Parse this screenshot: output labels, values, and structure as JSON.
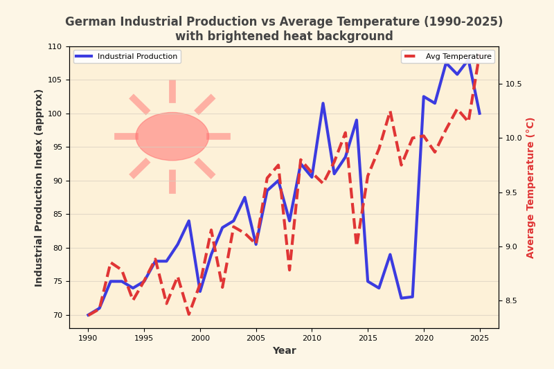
{
  "chart_data": {
    "type": "line",
    "title": "German Industrial Production vs Average Temperature (1990-2025)\nwith brightened heat background",
    "x_label": "Year",
    "y_label": "Industrial Production Index (approx)",
    "y2_label": "Average Temperature (°C)",
    "x": [
      1990,
      1991,
      1992,
      1993,
      1994,
      1995,
      1996,
      1997,
      1998,
      1999,
      2000,
      2001,
      2002,
      2003,
      2004,
      2005,
      2006,
      2007,
      2008,
      2009,
      2010,
      2011,
      2012,
      2013,
      2014,
      2015,
      2016,
      2017,
      2018,
      2019,
      2020,
      2021,
      2022,
      2023,
      2024,
      2025
    ],
    "series": [
      {
        "name": "Industrial Production",
        "color": "#3b3be0",
        "line_style": "solid",
        "legend": "upper left",
        "values": [
          70,
          71,
          75,
          75,
          74,
          75,
          78,
          78,
          80.5,
          84,
          73.5,
          79,
          83,
          84,
          87.5,
          80.5,
          88.5,
          90,
          84,
          92.5,
          90.5,
          101.5,
          91,
          93.5,
          99,
          75,
          74,
          79,
          72.5,
          72.7,
          102.5,
          101.5,
          107.5,
          105.8,
          108,
          100
        ]
      },
      {
        "name": "Avg Temperature",
        "color": "#e03535",
        "line_style": "dashed",
        "axis": "y2",
        "legend": "upper right",
        "values": [
          8.36,
          8.42,
          8.85,
          8.78,
          8.5,
          8.68,
          8.88,
          8.47,
          8.72,
          8.37,
          8.65,
          9.15,
          8.62,
          9.18,
          9.12,
          9.02,
          9.63,
          9.75,
          8.78,
          9.8,
          9.68,
          9.58,
          9.78,
          10.05,
          9.0,
          9.65,
          9.9,
          10.25,
          9.75,
          10.0,
          10.02,
          9.87,
          10.08,
          10.27,
          10.15,
          10.78
        ]
      }
    ],
    "xlim": [
      1988.3,
      2026.7
    ],
    "xticks": [
      1990,
      1995,
      2000,
      2005,
      2010,
      2015,
      2020,
      2025
    ],
    "ylim": [
      68,
      110
    ],
    "yticks": [
      70,
      75,
      80,
      85,
      90,
      95,
      100,
      105,
      110
    ],
    "y2lim": [
      8.24,
      10.85
    ],
    "y2ticks": [
      8.5,
      {
        "value": 9,
        "label": "9.0"
      },
      9.5,
      {
        "value": 10,
        "label": "10.0"
      },
      10.5
    ],
    "grid": true
  }
}
